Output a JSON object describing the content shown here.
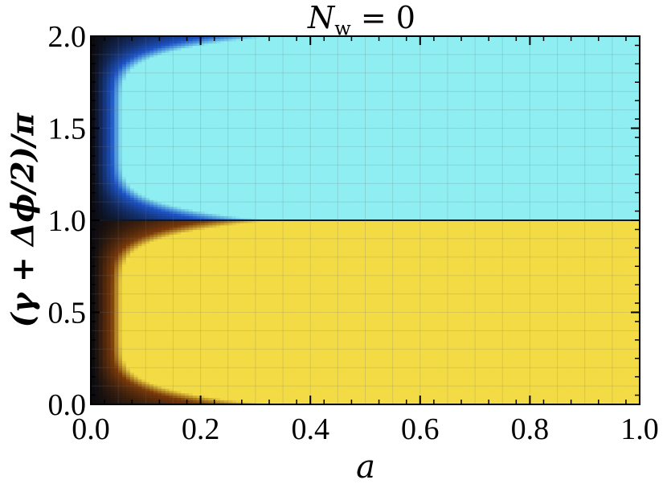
{
  "chart_data": {
    "type": "heatmap",
    "title_main": "N",
    "title_sub": "w",
    "title_rest": " = 0",
    "xlabel": "a",
    "ylabel": "(γ + Δϕ/2)/π",
    "xlim": [
      0.0,
      1.0
    ],
    "ylim": [
      0.0,
      2.0
    ],
    "xticks": [
      "0.0",
      "0.2",
      "0.4",
      "0.6",
      "0.8",
      "1.0"
    ],
    "yticks": [
      "0.0",
      "0.5",
      "1.0",
      "1.5",
      "2.0"
    ],
    "xtick_values": [
      0.0,
      0.2,
      0.4,
      0.6,
      0.8,
      1.0
    ],
    "ytick_values": [
      0.0,
      0.5,
      1.0,
      1.5,
      2.0
    ],
    "regions": [
      {
        "y_range": [
          0.0,
          1.0
        ],
        "plateau_color": "#f3db45",
        "edge_color": "#7a3a0a"
      },
      {
        "y_range": [
          1.0,
          2.0
        ],
        "plateau_color": "#8eeef1",
        "edge_color": "#1d54c7"
      }
    ],
    "background_color": "#0b0b10",
    "grid": true
  }
}
